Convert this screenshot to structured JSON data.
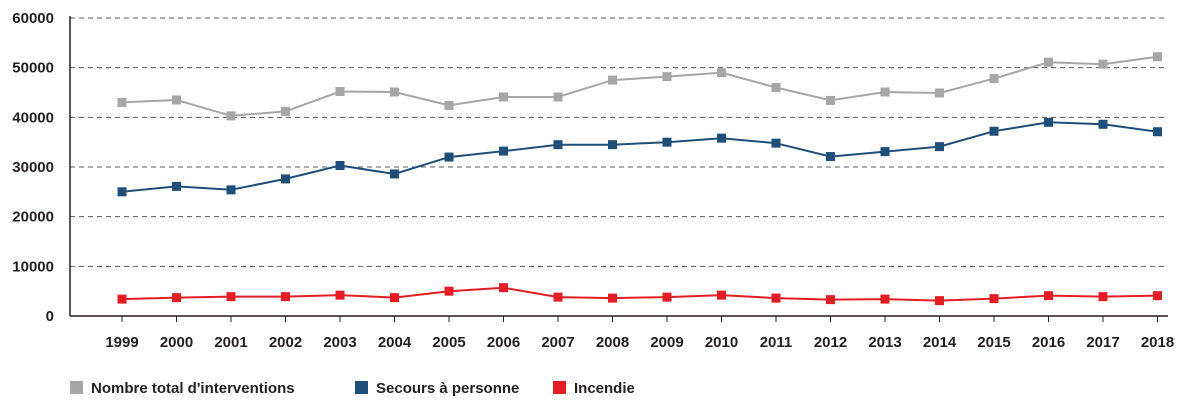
{
  "chart_data": {
    "type": "line",
    "title": "",
    "xlabel": "",
    "ylabel": "",
    "categories": [
      "1999",
      "2000",
      "2001",
      "2002",
      "2003",
      "2004",
      "2005",
      "2006",
      "2007",
      "2008",
      "2009",
      "2010",
      "2011",
      "2012",
      "2013",
      "2014",
      "2015",
      "2016",
      "2017",
      "2018"
    ],
    "ylim": [
      0,
      60000
    ],
    "yticks": [
      "0",
      "10000",
      "20000",
      "30000",
      "40000",
      "50000",
      "60000"
    ],
    "grid": "horizontal-dashed",
    "legend_position": "bottom-left",
    "series": [
      {
        "name": "Nombre total d'interventions",
        "color": "#a6a6a6",
        "values": [
          43000,
          43500,
          40300,
          41200,
          45200,
          45100,
          42400,
          44100,
          44100,
          47500,
          48200,
          49000,
          46000,
          43400,
          45100,
          44900,
          47800,
          51100,
          50700,
          52200
        ]
      },
      {
        "name": "Secours à personne",
        "color": "#1f4e79",
        "values": [
          25000,
          26100,
          25400,
          27600,
          30300,
          28600,
          32000,
          33200,
          34500,
          34500,
          35000,
          35800,
          34800,
          32100,
          33100,
          34100,
          37200,
          39000,
          38600,
          37100
        ]
      },
      {
        "name": "Incendie",
        "color": "#e31d24",
        "values": [
          3400,
          3700,
          3900,
          3900,
          4200,
          3700,
          5000,
          5700,
          3800,
          3600,
          3800,
          4200,
          3600,
          3300,
          3400,
          3100,
          3500,
          4100,
          3900,
          4100
        ]
      }
    ]
  }
}
